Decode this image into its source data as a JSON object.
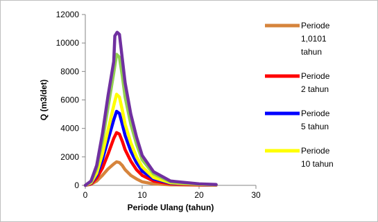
{
  "chart_data": {
    "type": "line",
    "xlabel": "Periode Ulang (tahun)",
    "ylabel": "Q (m3/det)",
    "xlim": [
      0,
      30
    ],
    "ylim": [
      0,
      12000
    ],
    "x_ticks": [
      0,
      10,
      20,
      30
    ],
    "y_ticks": [
      0,
      2000,
      4000,
      6000,
      8000,
      10000,
      12000
    ],
    "grid": false,
    "legend_position": "right",
    "series": [
      {
        "name": "Periode 1,0101 tahun",
        "legend_lines": [
          "Periode",
          "1,0101",
          "tahun"
        ],
        "color": "#d6843c",
        "points": [
          [
            0,
            0
          ],
          [
            1,
            80
          ],
          [
            2,
            300
          ],
          [
            3,
            700
          ],
          [
            4,
            1150
          ],
          [
            5,
            1500
          ],
          [
            5.5,
            1650
          ],
          [
            6,
            1600
          ],
          [
            6.5,
            1400
          ],
          [
            7,
            1100
          ],
          [
            8,
            700
          ],
          [
            9,
            450
          ],
          [
            10,
            250
          ],
          [
            12,
            100
          ],
          [
            15,
            40
          ],
          [
            20,
            20
          ],
          [
            23,
            10
          ]
        ]
      },
      {
        "name": "Periode 2 tahun",
        "legend_lines": [
          "Periode",
          "2 tahun"
        ],
        "color": "#ff0000",
        "points": [
          [
            0,
            0
          ],
          [
            1,
            100
          ],
          [
            2,
            500
          ],
          [
            3,
            1200
          ],
          [
            4,
            2200
          ],
          [
            5,
            3300
          ],
          [
            5.5,
            3700
          ],
          [
            6,
            3600
          ],
          [
            6.5,
            3100
          ],
          [
            7,
            2500
          ],
          [
            8,
            1700
          ],
          [
            9,
            1100
          ],
          [
            10,
            700
          ],
          [
            12,
            300
          ],
          [
            15,
            100
          ],
          [
            20,
            40
          ],
          [
            23,
            20
          ]
        ]
      },
      {
        "name": "Periode 5 tahun",
        "legend_lines": [
          "Periode",
          "5 tahun"
        ],
        "color": "#0000ff",
        "points": [
          [
            0,
            0
          ],
          [
            1,
            150
          ],
          [
            2,
            700
          ],
          [
            3,
            1800
          ],
          [
            4,
            3200
          ],
          [
            5,
            4600
          ],
          [
            5.5,
            5200
          ],
          [
            6,
            5050
          ],
          [
            6.5,
            4300
          ],
          [
            7,
            3500
          ],
          [
            8,
            2400
          ],
          [
            9,
            1600
          ],
          [
            10,
            1000
          ],
          [
            12,
            450
          ],
          [
            15,
            150
          ],
          [
            20,
            60
          ],
          [
            23,
            30
          ]
        ]
      },
      {
        "name": "Periode 10 tahun",
        "legend_lines": [
          "Periode",
          "10 tahun"
        ],
        "color": "#ffff00",
        "points": [
          [
            0,
            0
          ],
          [
            1,
            180
          ],
          [
            2,
            850
          ],
          [
            3,
            2200
          ],
          [
            4,
            3900
          ],
          [
            5,
            5600
          ],
          [
            5.5,
            6400
          ],
          [
            6,
            6200
          ],
          [
            6.5,
            5300
          ],
          [
            7,
            4300
          ],
          [
            8,
            3000
          ],
          [
            9,
            2000
          ],
          [
            10,
            1300
          ],
          [
            12,
            550
          ],
          [
            15,
            180
          ],
          [
            20,
            70
          ],
          [
            23,
            35
          ]
        ]
      },
      {
        "name": "",
        "color": "#92d050",
        "points": [
          [
            0,
            0
          ],
          [
            1,
            250
          ],
          [
            2,
            1200
          ],
          [
            3,
            3100
          ],
          [
            4,
            5500
          ],
          [
            5,
            7900
          ],
          [
            5.5,
            9200
          ],
          [
            6,
            9000
          ],
          [
            6.5,
            7700
          ],
          [
            7,
            6200
          ],
          [
            8,
            4300
          ],
          [
            9,
            2900
          ],
          [
            10,
            1800
          ],
          [
            12,
            800
          ],
          [
            15,
            250
          ],
          [
            20,
            90
          ],
          [
            23,
            45
          ]
        ]
      },
      {
        "name": "",
        "color": "#7030a0",
        "points": [
          [
            0,
            0
          ],
          [
            1,
            300
          ],
          [
            2,
            1400
          ],
          [
            3,
            3600
          ],
          [
            4,
            6300
          ],
          [
            5,
            8700
          ],
          [
            5.2,
            10500
          ],
          [
            5.6,
            10750
          ],
          [
            6,
            10600
          ],
          [
            6.5,
            8900
          ],
          [
            7,
            7200
          ],
          [
            8,
            5000
          ],
          [
            9,
            3400
          ],
          [
            10,
            2100
          ],
          [
            12,
            950
          ],
          [
            15,
            300
          ],
          [
            20,
            100
          ],
          [
            23,
            60
          ]
        ]
      }
    ]
  }
}
